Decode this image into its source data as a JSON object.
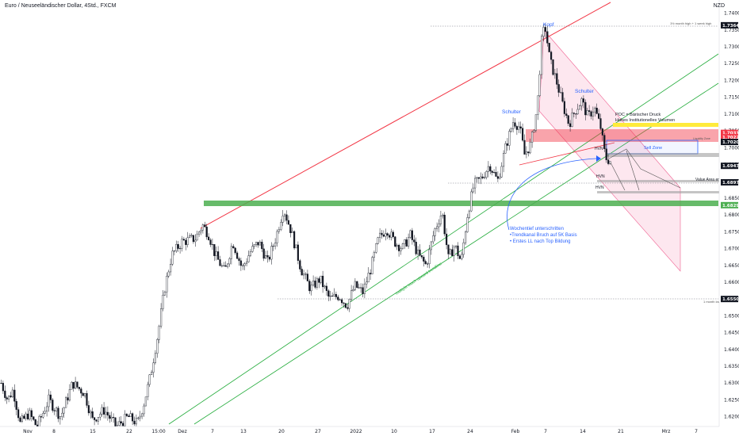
{
  "header": {
    "symbol_title": "Euro / Neuseeländischer Dollar, 4Std., FXCM",
    "currency": "NZD"
  },
  "colors": {
    "up_candle": "#ffffff",
    "down_candle": "#131722",
    "resistance_red": "#f23645",
    "channel_green": "#22ab3a",
    "support_band": "#4caf50",
    "poc_yellow": "#ffeb3b",
    "sell_zone_blue": "#2962ff",
    "label_dark": "#131722",
    "label_red": "#f23645",
    "label_green": "#4caf50",
    "pink_fill": "#f8bbd0"
  },
  "chart_data": {
    "type": "candlestick",
    "instrument": "EUR/NZD",
    "timeframe": "4H",
    "ylim": [
      1.6185,
      1.7425
    ],
    "price_ticks": [
      "1.7400",
      "1.7350",
      "1.7300",
      "1.7250",
      "1.7200",
      "1.7150",
      "1.7100",
      "1.7050",
      "1.7000",
      "1.6950",
      "1.6900",
      "1.6850",
      "1.6800",
      "1.6750",
      "1.6700",
      "1.6650",
      "1.6600",
      "1.6550",
      "1.6500",
      "1.6450",
      "1.6400",
      "1.6350",
      "1.6300",
      "1.6250",
      "1.6200"
    ],
    "time_ticks": [
      "Nov",
      "8",
      "15",
      "22",
      "15:00",
      "Dez",
      "7",
      "13",
      "20",
      "27",
      "2022",
      "10",
      "17",
      "24",
      "Feb",
      "7",
      "14",
      "21",
      "Mrz",
      "7"
    ],
    "price_labels": [
      {
        "text": "1.7364",
        "price": 1.7364,
        "style": "dark"
      },
      {
        "text": "1.7033",
        "price": 1.7044,
        "style": "red"
      },
      {
        "text": "1.7022",
        "price": 1.7031,
        "style": "red"
      },
      {
        "text": "1.7020",
        "price": 1.7017,
        "style": "dark"
      },
      {
        "text": "1.6947",
        "price": 1.6946,
        "style": "dark"
      },
      {
        "text": "1.6897",
        "price": 1.6897,
        "style": "dark"
      },
      {
        "text": "1.6829",
        "price": 1.6829,
        "style": "green"
      },
      {
        "text": "1.6550",
        "price": 1.655,
        "style": "dark"
      }
    ],
    "candle_path": [
      [
        0,
        1.63
      ],
      [
        8,
        1.625
      ],
      [
        15,
        1.628
      ],
      [
        24,
        1.618
      ],
      [
        35,
        1.621
      ],
      [
        45,
        1.617
      ],
      [
        60,
        1.625
      ],
      [
        75,
        1.62
      ],
      [
        90,
        1.63
      ],
      [
        105,
        1.627
      ],
      [
        115,
        1.619
      ],
      [
        130,
        1.622
      ],
      [
        145,
        1.617
      ],
      [
        160,
        1.62
      ],
      [
        172,
        1.618
      ],
      [
        180,
        1.624
      ],
      [
        188,
        1.632
      ],
      [
        198,
        1.645
      ],
      [
        206,
        1.658
      ],
      [
        215,
        1.668
      ],
      [
        228,
        1.672
      ],
      [
        245,
        1.673
      ],
      [
        254,
        1.677
      ],
      [
        262,
        1.674
      ],
      [
        270,
        1.668
      ],
      [
        282,
        1.663
      ],
      [
        292,
        1.672
      ],
      [
        304,
        1.664
      ],
      [
        314,
        1.669
      ],
      [
        325,
        1.672
      ],
      [
        336,
        1.666
      ],
      [
        346,
        1.673
      ],
      [
        356,
        1.682
      ],
      [
        366,
        1.675
      ],
      [
        378,
        1.664
      ],
      [
        390,
        1.658
      ],
      [
        402,
        1.661
      ],
      [
        414,
        1.655
      ],
      [
        426,
        1.656
      ],
      [
        436,
        1.653
      ],
      [
        446,
        1.659
      ],
      [
        456,
        1.657
      ],
      [
        466,
        1.664
      ],
      [
        476,
        1.673
      ],
      [
        486,
        1.676
      ],
      [
        496,
        1.672
      ],
      [
        506,
        1.67
      ],
      [
        516,
        1.674
      ],
      [
        526,
        1.668
      ],
      [
        536,
        1.665
      ],
      [
        546,
        1.675
      ],
      [
        556,
        1.681
      ],
      [
        564,
        1.667
      ],
      [
        572,
        1.671
      ],
      [
        580,
        1.666
      ],
      [
        588,
        1.68
      ],
      [
        596,
        1.689
      ],
      [
        606,
        1.691
      ],
      [
        616,
        1.695
      ],
      [
        626,
        1.69
      ],
      [
        636,
        1.7
      ],
      [
        646,
        1.708
      ],
      [
        654,
        1.706
      ],
      [
        660,
        1.698
      ],
      [
        668,
        1.701
      ],
      [
        676,
        1.712
      ],
      [
        682,
        1.733
      ],
      [
        686,
        1.736
      ],
      [
        692,
        1.726
      ],
      [
        700,
        1.72
      ],
      [
        708,
        1.713
      ],
      [
        716,
        1.707
      ],
      [
        724,
        1.711
      ],
      [
        732,
        1.714
      ],
      [
        740,
        1.709
      ],
      [
        748,
        1.712
      ],
      [
        756,
        1.706
      ],
      [
        762,
        1.697
      ],
      [
        768,
        1.696
      ]
    ],
    "annotations": [
      {
        "text": "Kopf"
      },
      {
        "text": "Schulter"
      },
      {
        "text": "Schulter"
      },
      {
        "text": "POC = Bärischer Druck"
      },
      {
        "text": "Hohes Institutionelles Volumen"
      },
      {
        "text": "Sell Zone"
      },
      {
        "text": "HVN"
      },
      {
        "text": "HVN"
      },
      {
        "text": "HVN"
      },
      {
        "text": "Value Area end"
      },
      {
        "text": "Wochentief unterschritten"
      },
      {
        "text": "•Trendkanal Bruch auf 5K Basis"
      },
      {
        "text": "• Erstes LL nach Top Bildung"
      },
      {
        "text": "multiple touch upward trendline"
      },
      {
        "text": "1½ month high + 1 week high"
      },
      {
        "text": "1 month low"
      },
      {
        "text": "Liquidity Zone"
      }
    ]
  }
}
